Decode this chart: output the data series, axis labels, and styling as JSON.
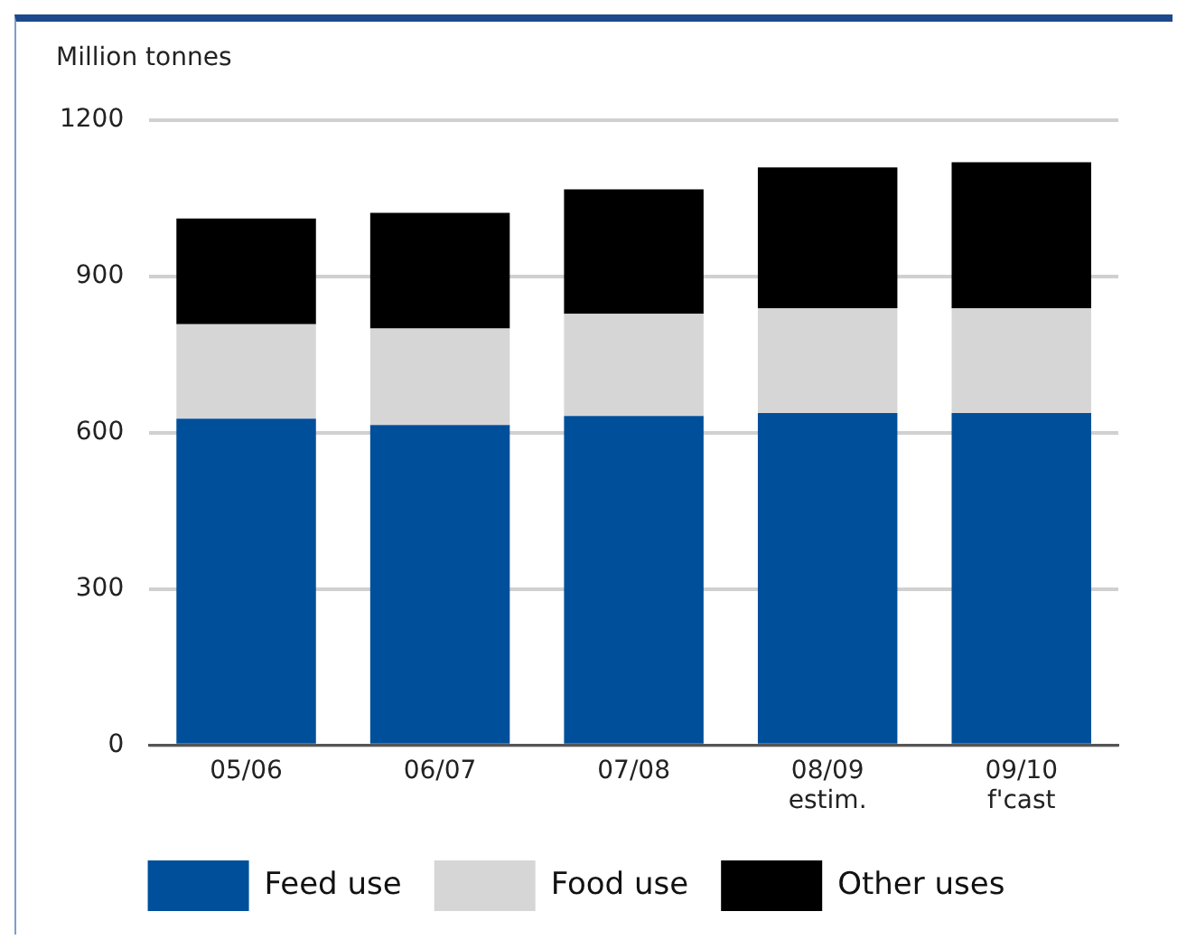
{
  "chart_data": {
    "type": "bar",
    "ylabel": "Million tonnes",
    "stacked": true,
    "categories": [
      "05/06",
      "06/07",
      "07/08",
      "08/09\nestim.",
      "09/10\nf'cast"
    ],
    "series": [
      {
        "name": "Feed use",
        "color": "#004f9a",
        "values": [
          627,
          615,
          632,
          638,
          638
        ]
      },
      {
        "name": "Food use",
        "color": "#d6d6d6",
        "values": [
          181,
          185,
          196,
          201,
          201
        ]
      },
      {
        "name": "Other uses",
        "color": "#000000",
        "values": [
          203,
          222,
          239,
          270,
          280
        ]
      }
    ],
    "ylim": [
      0,
      1200
    ],
    "yticks": [
      0,
      300,
      600,
      900,
      1200
    ],
    "grid": "y",
    "legend": "bottom"
  }
}
